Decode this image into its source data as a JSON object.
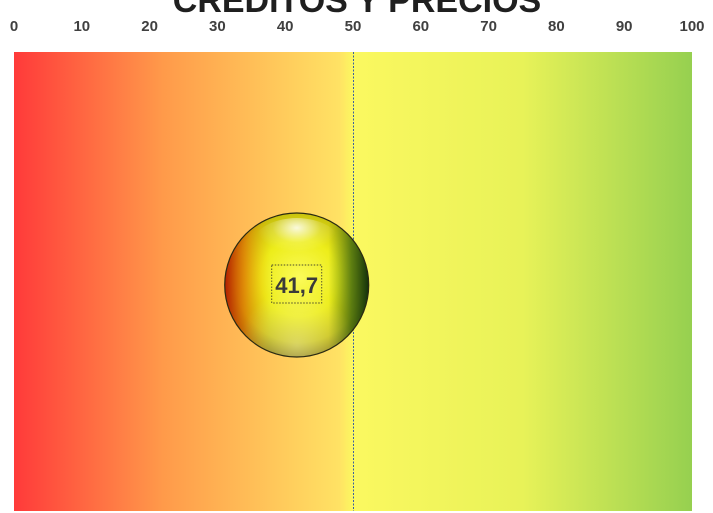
{
  "chart_data": {
    "type": "scatter",
    "title": "CRÉDITOS Y PRECIOS",
    "xlabel": "",
    "ylabel": "",
    "xlim": [
      0,
      100
    ],
    "x_ticks": [
      "0",
      "10",
      "20",
      "30",
      "40",
      "50",
      "60",
      "70",
      "80",
      "90",
      "100"
    ],
    "reference_line_x": 50,
    "grid": false,
    "legend": "none",
    "background_gradient": [
      "#ff3a3a",
      "#ff9a4a",
      "#ffe264",
      "#fbf860",
      "#e8f258",
      "#96d050"
    ],
    "series": [
      {
        "values": [
          {
            "x": 41.7,
            "label": "41,7"
          }
        ]
      }
    ]
  }
}
